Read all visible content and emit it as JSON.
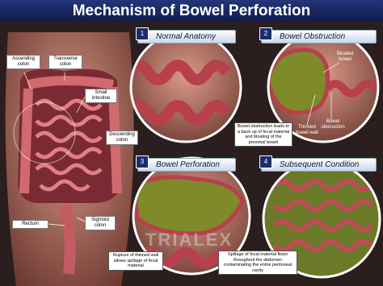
{
  "header": {
    "title": "Mechanism of Bowel Perforation"
  },
  "anatomy_labels": [
    "Ascending colon",
    "Transverse colon",
    "Small intestine",
    "Descending colon",
    "Rectum",
    "Sigmoid colon"
  ],
  "panels": [
    {
      "number": "1",
      "title": "Normal Anatomy"
    },
    {
      "number": "2",
      "title": "Bowel Obstruction"
    },
    {
      "number": "3",
      "title": "Bowel Perforation"
    },
    {
      "number": "4",
      "title": "Subsequent Condition"
    }
  ],
  "obstruction_labels": [
    "Bloated bowel",
    "Bowel obstruction",
    "Thinned bowel wall"
  ],
  "captions": {
    "obstruction": "Bowel obstruction leads to a back up of fecal material and bloating of the proximal bowel",
    "perforation": "Rupture of thinned wall allows spillage of fecal material",
    "subsequent": "Spillage of fecal material flows throughout the abdomen contaminating the entire peritoneal cavity"
  },
  "watermark": "TRIALEX"
}
